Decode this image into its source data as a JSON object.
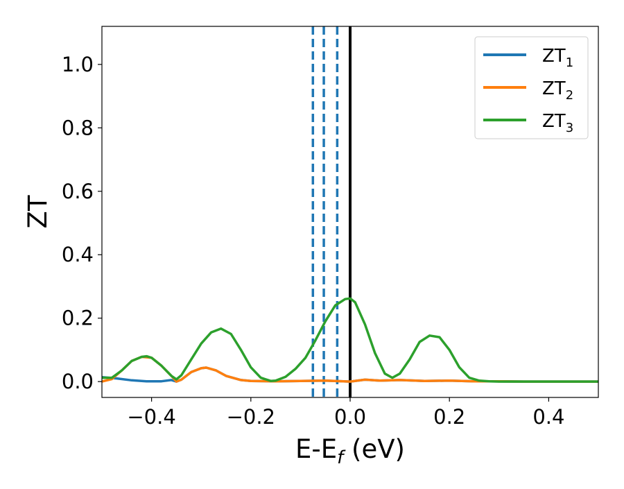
{
  "chart_data": {
    "type": "line",
    "xlabel": "E-E",
    "xlabel_sub": "f",
    "xlabel_unit": " (eV)",
    "ylabel": "ZT",
    "xlim": [
      -0.5,
      0.5
    ],
    "ylim": [
      -0.05,
      1.12
    ],
    "xticks": [
      -0.4,
      -0.2,
      0.0,
      0.2,
      0.4
    ],
    "xtick_labels": [
      "−0.4",
      "−0.2",
      "0.0",
      "0.2",
      "0.4"
    ],
    "yticks": [
      0.0,
      0.2,
      0.4,
      0.6,
      0.8,
      1.0
    ],
    "ytick_labels": [
      "0.0",
      "0.2",
      "0.4",
      "0.6",
      "0.8",
      "1.0"
    ],
    "grid": false,
    "legend_position": "top-right",
    "series": [
      {
        "name": "ZT",
        "name_sub": "1",
        "color": "#1f77b4",
        "x": [
          -0.5,
          -0.47,
          -0.44,
          -0.41,
          -0.38,
          -0.36,
          -0.35,
          -0.34,
          -0.32,
          -0.3,
          -0.29,
          -0.27,
          -0.25,
          -0.22,
          -0.2,
          -0.15,
          -0.1,
          -0.05,
          0.0,
          0.03,
          0.06,
          0.1,
          0.15,
          0.2,
          0.25,
          0.3,
          0.35,
          0.4,
          0.45,
          0.5
        ],
        "y": [
          0.014,
          0.01,
          0.004,
          0.001,
          0.001,
          0.005,
          0.0,
          0.006,
          0.03,
          0.042,
          0.044,
          0.035,
          0.018,
          0.005,
          0.002,
          0.001,
          0.002,
          0.003,
          0.0,
          0.006,
          0.003,
          0.005,
          0.002,
          0.003,
          0.001,
          0.001,
          0.0,
          0.0,
          0.0,
          0.0
        ]
      },
      {
        "name": "ZT",
        "name_sub": "2",
        "color": "#ff7f0e",
        "x": [
          -0.5,
          -0.48,
          -0.46,
          -0.44,
          -0.42,
          -0.4,
          -0.38,
          -0.36,
          -0.35,
          -0.34,
          -0.32,
          -0.3,
          -0.29,
          -0.27,
          -0.25,
          -0.22,
          -0.2,
          -0.15,
          -0.1,
          -0.05,
          0.0,
          0.03,
          0.06,
          0.1,
          0.15,
          0.2,
          0.25,
          0.3,
          0.35,
          0.4,
          0.45,
          0.5
        ],
        "y": [
          0.0,
          0.008,
          0.035,
          0.065,
          0.078,
          0.075,
          0.05,
          0.018,
          0.0,
          0.006,
          0.03,
          0.042,
          0.044,
          0.035,
          0.018,
          0.005,
          0.002,
          0.001,
          0.002,
          0.003,
          0.0,
          0.006,
          0.003,
          0.005,
          0.002,
          0.003,
          0.001,
          0.001,
          0.0,
          0.0,
          0.0,
          0.0
        ]
      },
      {
        "name": "ZT",
        "name_sub": "3",
        "color": "#2ca02c",
        "x": [
          -0.5,
          -0.48,
          -0.46,
          -0.44,
          -0.42,
          -0.41,
          -0.4,
          -0.38,
          -0.36,
          -0.35,
          -0.34,
          -0.32,
          -0.3,
          -0.28,
          -0.26,
          -0.24,
          -0.22,
          -0.2,
          -0.18,
          -0.16,
          -0.15,
          -0.13,
          -0.11,
          -0.09,
          -0.07,
          -0.05,
          -0.03,
          -0.01,
          0.0,
          0.01,
          0.03,
          0.05,
          0.07,
          0.085,
          0.1,
          0.12,
          0.14,
          0.16,
          0.18,
          0.2,
          0.22,
          0.24,
          0.26,
          0.28,
          0.3,
          0.35,
          0.4,
          0.45,
          0.5
        ],
        "y": [
          0.012,
          0.012,
          0.035,
          0.065,
          0.078,
          0.08,
          0.075,
          0.05,
          0.018,
          0.007,
          0.02,
          0.07,
          0.12,
          0.155,
          0.167,
          0.15,
          0.1,
          0.045,
          0.012,
          0.002,
          0.003,
          0.015,
          0.04,
          0.075,
          0.13,
          0.19,
          0.24,
          0.26,
          0.262,
          0.25,
          0.18,
          0.09,
          0.025,
          0.012,
          0.025,
          0.07,
          0.125,
          0.145,
          0.14,
          0.1,
          0.045,
          0.012,
          0.003,
          0.001,
          0.0,
          0.0,
          0.0,
          0.0,
          0.0
        ]
      }
    ],
    "vlines": [
      {
        "x": -0.075,
        "color": "#1f77b4",
        "style": "dashed"
      },
      {
        "x": -0.053,
        "color": "#1f77b4",
        "style": "dashed"
      },
      {
        "x": -0.026,
        "color": "#1f77b4",
        "style": "dashed"
      },
      {
        "x": 0.0,
        "color": "#000000",
        "style": "solid"
      }
    ]
  }
}
